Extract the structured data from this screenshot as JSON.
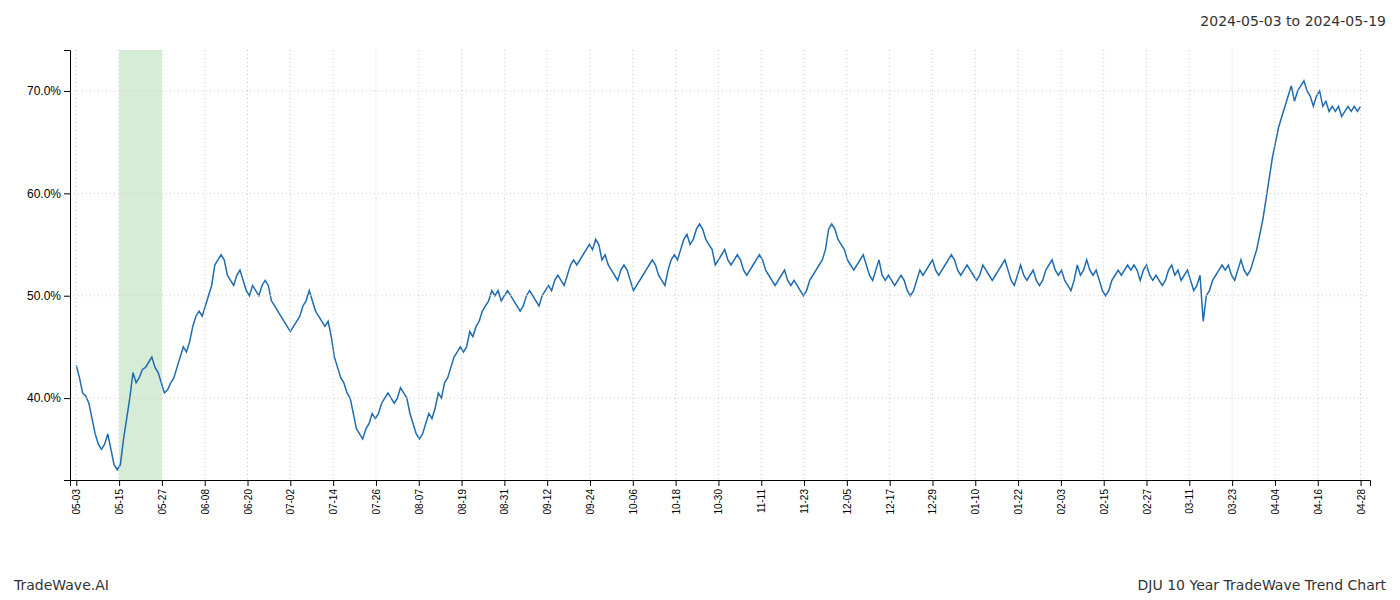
{
  "chart_data": {
    "type": "line",
    "title": "2024-05-03 to 2024-05-19",
    "annotations": [
      "TradeWave.AI",
      "DJU 10 Year TradeWave Trend Chart"
    ],
    "color": "#1f6cb0",
    "grid": true,
    "xlim": [
      -2,
      411
    ],
    "xticks": [
      {
        "value": 0,
        "label": "05-03"
      },
      {
        "value": 13.6,
        "label": "05-15"
      },
      {
        "value": 27.2,
        "label": "05-27"
      },
      {
        "value": 40.8,
        "label": "06-08"
      },
      {
        "value": 54.4,
        "label": "06-20"
      },
      {
        "value": 68,
        "label": "07-02"
      },
      {
        "value": 81.6,
        "label": "07-14"
      },
      {
        "value": 95.2,
        "label": "07-26"
      },
      {
        "value": 108.8,
        "label": "08-07"
      },
      {
        "value": 122.4,
        "label": "08-19"
      },
      {
        "value": 136,
        "label": "08-31"
      },
      {
        "value": 149.6,
        "label": "09-12"
      },
      {
        "value": 163.2,
        "label": "09-24"
      },
      {
        "value": 176.8,
        "label": "10-06"
      },
      {
        "value": 190.4,
        "label": "10-18"
      },
      {
        "value": 204,
        "label": "10-30"
      },
      {
        "value": 217.6,
        "label": "11-11"
      },
      {
        "value": 231.2,
        "label": "11-23"
      },
      {
        "value": 244.8,
        "label": "12-05"
      },
      {
        "value": 258.4,
        "label": "12-17"
      },
      {
        "value": 272,
        "label": "12-29"
      },
      {
        "value": 285.6,
        "label": "01-10"
      },
      {
        "value": 299.2,
        "label": "01-22"
      },
      {
        "value": 312.8,
        "label": "02-03"
      },
      {
        "value": 326.4,
        "label": "02-15"
      },
      {
        "value": 340,
        "label": "02-27"
      },
      {
        "value": 353.6,
        "label": "03-11"
      },
      {
        "value": 367.2,
        "label": "03-23"
      },
      {
        "value": 380.8,
        "label": "04-04"
      },
      {
        "value": 394.4,
        "label": "04-16"
      },
      {
        "value": 408,
        "label": "04-28"
      }
    ],
    "ylim": [
      32,
      74
    ],
    "yticks": [
      {
        "value": 40.0,
        "label": "40.0%"
      },
      {
        "value": 50.0,
        "label": "50.0%"
      },
      {
        "value": 60.0,
        "label": "60.0%"
      },
      {
        "value": 70.0,
        "label": "70.0%"
      }
    ],
    "bands": [
      {
        "start": 13.6,
        "end": 27.2,
        "color": "#d6ecd6"
      }
    ],
    "values": [
      43.2,
      42.0,
      40.5,
      40.2,
      39.5,
      38.0,
      36.5,
      35.5,
      35.0,
      35.5,
      36.5,
      35.0,
      33.5,
      33.0,
      33.5,
      36.0,
      38.0,
      40.0,
      42.5,
      41.5,
      42.0,
      42.8,
      43.0,
      43.5,
      44.0,
      43.0,
      42.5,
      41.5,
      40.5,
      40.8,
      41.5,
      42.0,
      43.0,
      44.0,
      45.0,
      44.5,
      45.5,
      47.0,
      48.0,
      48.5,
      48.0,
      49.0,
      50.0,
      51.0,
      53.0,
      53.5,
      54.0,
      53.5,
      52.0,
      51.5,
      51.0,
      52.0,
      52.5,
      51.5,
      50.5,
      50.0,
      51.0,
      50.5,
      50.0,
      51.0,
      51.5,
      51.0,
      49.5,
      49.0,
      48.5,
      48.0,
      47.5,
      47.0,
      46.5,
      47.0,
      47.5,
      48.0,
      49.0,
      49.5,
      50.5,
      49.5,
      48.5,
      48.0,
      47.5,
      47.0,
      47.5,
      46.0,
      44.0,
      43.0,
      42.0,
      41.5,
      40.5,
      40.0,
      38.5,
      37.0,
      36.5,
      36.0,
      37.0,
      37.5,
      38.5,
      38.0,
      38.5,
      39.5,
      40.0,
      40.5,
      40.0,
      39.5,
      40.0,
      41.0,
      40.5,
      40.0,
      38.5,
      37.5,
      36.5,
      36.0,
      36.5,
      37.5,
      38.5,
      38.0,
      39.0,
      40.5,
      40.0,
      41.5,
      42.0,
      43.0,
      44.0,
      44.5,
      45.0,
      44.5,
      45.0,
      46.5,
      46.0,
      47.0,
      47.5,
      48.5,
      49.0,
      49.5,
      50.5,
      50.0,
      50.5,
      49.5,
      50.0,
      50.5,
      50.0,
      49.5,
      49.0,
      48.5,
      49.0,
      50.0,
      50.5,
      50.0,
      49.5,
      49.0,
      50.0,
      50.5,
      51.0,
      50.5,
      51.5,
      52.0,
      51.5,
      51.0,
      52.0,
      53.0,
      53.5,
      53.0,
      53.5,
      54.0,
      54.5,
      55.0,
      54.5,
      55.5,
      55.0,
      53.5,
      54.0,
      53.0,
      52.5,
      52.0,
      51.5,
      52.5,
      53.0,
      52.5,
      51.5,
      50.5,
      51.0,
      51.5,
      52.0,
      52.5,
      53.0,
      53.5,
      53.0,
      52.0,
      51.5,
      51.0,
      52.5,
      53.5,
      54.0,
      53.5,
      54.5,
      55.5,
      56.0,
      55.0,
      55.5,
      56.5,
      57.0,
      56.5,
      55.5,
      55.0,
      54.5,
      53.0,
      53.5,
      54.0,
      54.5,
      53.5,
      53.0,
      53.5,
      54.0,
      53.5,
      52.5,
      52.0,
      52.5,
      53.0,
      53.5,
      54.0,
      53.5,
      52.5,
      52.0,
      51.5,
      51.0,
      51.5,
      52.0,
      52.5,
      51.5,
      51.0,
      51.5,
      51.0,
      50.5,
      50.0,
      50.5,
      51.5,
      52.0,
      52.5,
      53.0,
      53.5,
      54.5,
      56.5,
      57.0,
      56.5,
      55.5,
      55.0,
      54.5,
      53.5,
      53.0,
      52.5,
      53.0,
      53.5,
      54.0,
      53.0,
      52.0,
      51.5,
      52.5,
      53.5,
      52.0,
      51.5,
      52.0,
      51.5,
      51.0,
      51.5,
      52.0,
      51.5,
      50.5,
      50.0,
      50.5,
      51.5,
      52.5,
      52.0,
      52.5,
      53.0,
      53.5,
      52.5,
      52.0,
      52.5,
      53.0,
      53.5,
      54.0,
      53.5,
      52.5,
      52.0,
      52.5,
      53.0,
      52.5,
      52.0,
      51.5,
      52.0,
      53.0,
      52.5,
      52.0,
      51.5,
      52.0,
      52.5,
      53.0,
      53.5,
      52.5,
      51.5,
      51.0,
      52.0,
      53.0,
      52.0,
      51.5,
      52.0,
      52.5,
      51.5,
      51.0,
      51.5,
      52.5,
      53.0,
      53.5,
      52.5,
      52.0,
      52.5,
      51.5,
      51.0,
      50.5,
      51.5,
      53.0,
      52.0,
      52.5,
      53.5,
      52.5,
      52.0,
      52.5,
      51.5,
      50.5,
      50.0,
      50.5,
      51.5,
      52.0,
      52.5,
      52.0,
      52.5,
      53.0,
      52.5,
      53.0,
      52.5,
      51.5,
      52.5,
      53.0,
      52.0,
      51.5,
      52.0,
      51.5,
      51.0,
      51.5,
      52.5,
      53.0,
      52.0,
      52.5,
      51.5,
      52.0,
      52.5,
      51.5,
      50.5,
      51.0,
      52.0,
      47.5,
      50.0,
      50.5,
      51.5,
      52.0,
      52.5,
      53.0,
      52.5,
      53.0,
      52.0,
      51.5,
      52.5,
      53.5,
      52.5,
      52.0,
      52.5,
      53.5,
      54.5,
      56.0,
      57.5,
      59.5,
      61.5,
      63.5,
      65.0,
      66.5,
      67.5,
      68.5,
      69.5,
      70.5,
      69.0,
      70.0,
      70.5,
      71.0,
      70.0,
      69.5,
      68.5,
      69.5,
      70.0,
      68.5,
      69.0,
      68.0,
      68.5,
      68.0,
      68.5,
      67.5,
      68.0,
      68.5,
      68.0,
      68.5,
      68.0,
      68.5
    ]
  }
}
